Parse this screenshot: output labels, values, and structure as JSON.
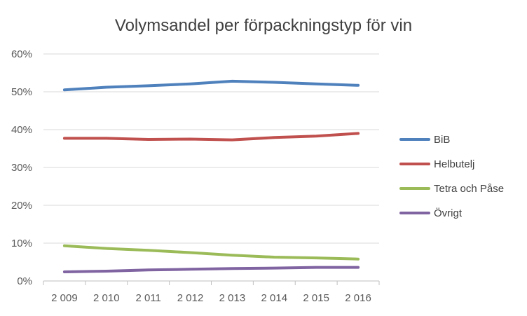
{
  "chart_data": {
    "type": "line",
    "title": "Volymsandel per förpackningstyp för vin",
    "categories": [
      "2 009",
      "2 010",
      "2 011",
      "2 012",
      "2 013",
      "2 014",
      "2 015",
      "2 016"
    ],
    "y_ticks": [
      "0%",
      "10%",
      "20%",
      "30%",
      "40%",
      "50%",
      "60%"
    ],
    "ylim": [
      0,
      0.6
    ],
    "grid": true,
    "legend_position": "right",
    "series": [
      {
        "name": "BiB",
        "color": "#4f81bd",
        "values": [
          0.505,
          0.512,
          0.516,
          0.521,
          0.528,
          0.525,
          0.521,
          0.517
        ]
      },
      {
        "name": "Helbutelj",
        "color": "#c0504d",
        "values": [
          0.377,
          0.377,
          0.374,
          0.375,
          0.373,
          0.379,
          0.383,
          0.39
        ]
      },
      {
        "name": "Tetra och Påse",
        "color": "#9bbb59",
        "values": [
          0.093,
          0.086,
          0.081,
          0.075,
          0.068,
          0.063,
          0.061,
          0.058
        ]
      },
      {
        "name": "Övrigt",
        "color": "#8064a2",
        "values": [
          0.024,
          0.026,
          0.029,
          0.031,
          0.033,
          0.034,
          0.036,
          0.036
        ]
      }
    ]
  }
}
